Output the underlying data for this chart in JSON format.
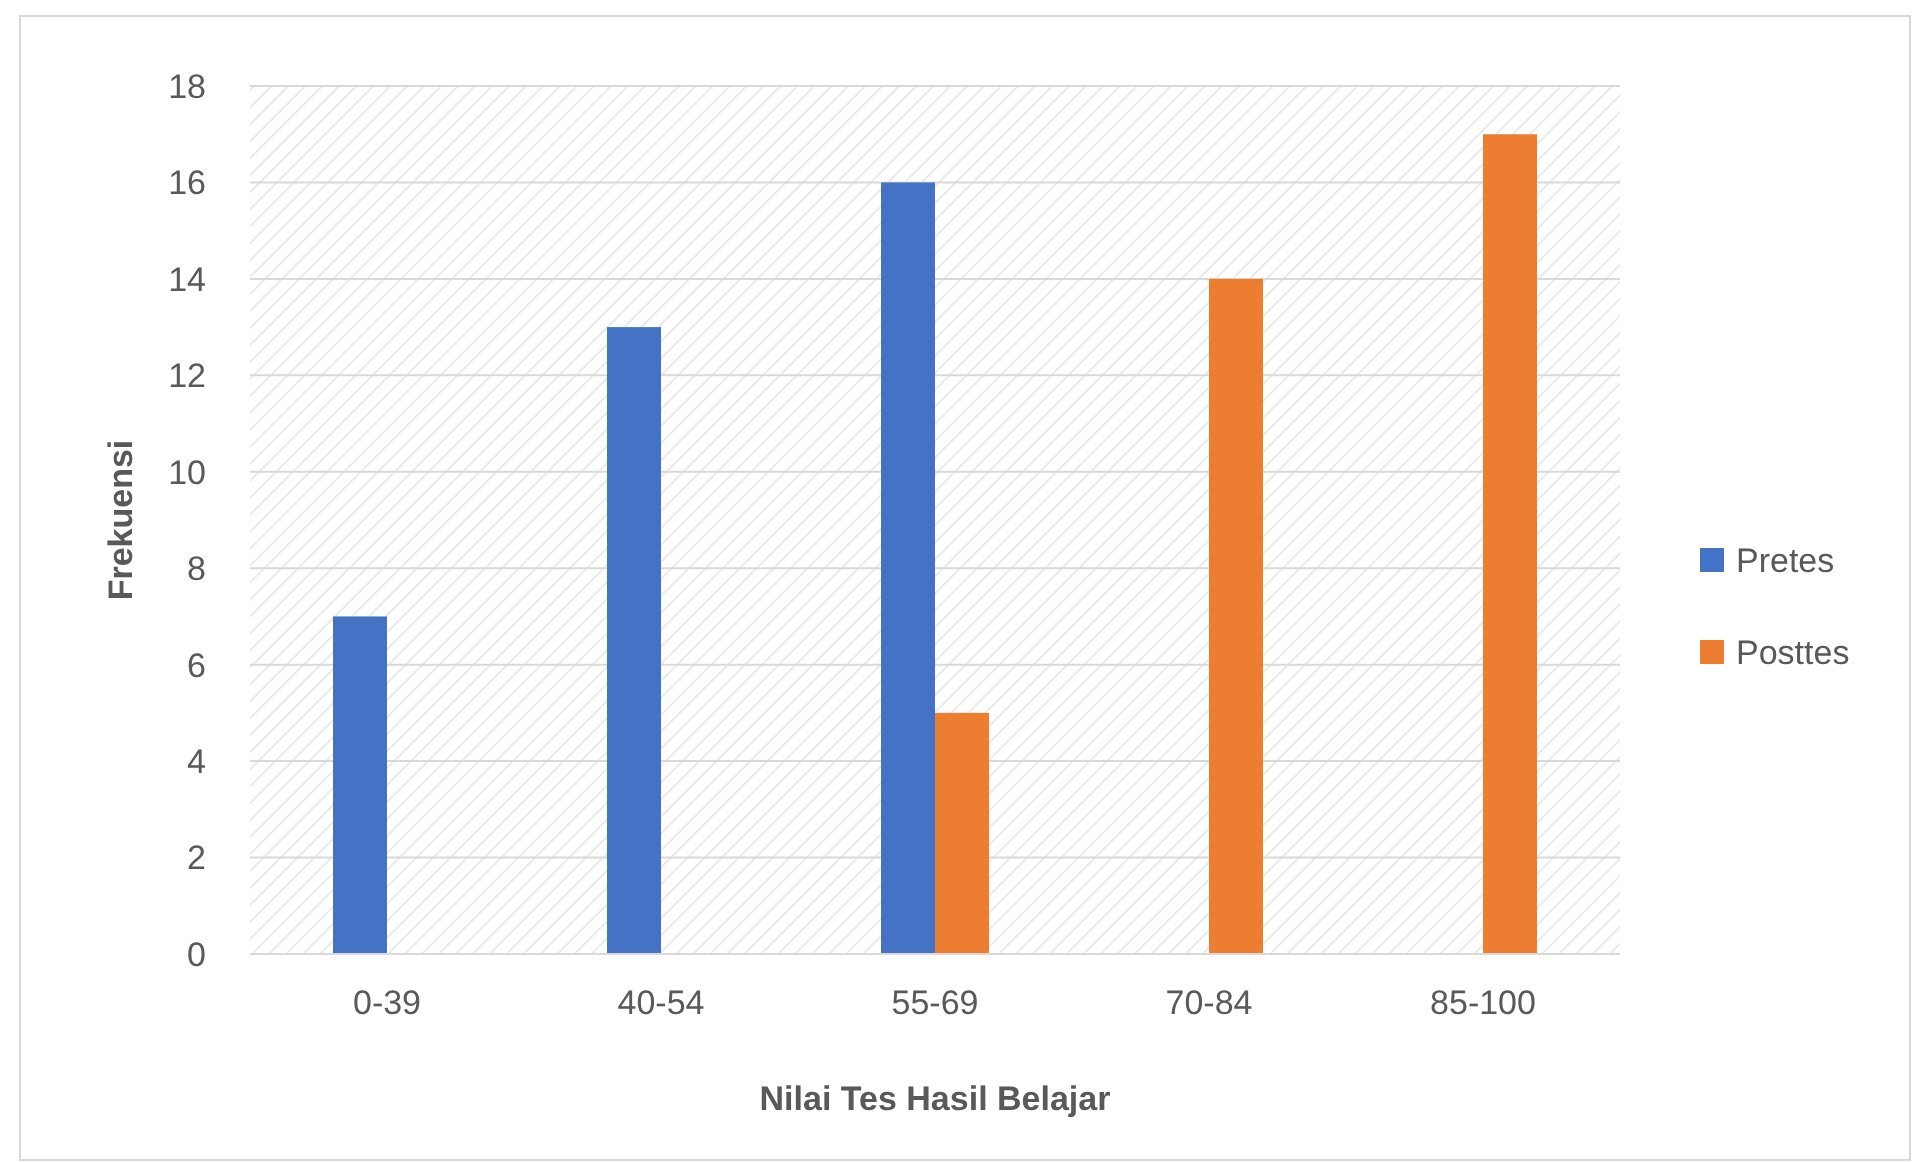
{
  "chart_data": {
    "type": "bar",
    "xlabel": "Nilai Tes Hasil Belajar",
    "ylabel": "Frekuensi",
    "categories": [
      "0-39",
      "40-54",
      "55-69",
      "70-84",
      "85-100"
    ],
    "series": [
      {
        "name": "Pretes",
        "color": "#4472c4",
        "values": [
          7,
          13,
          16,
          null,
          null
        ]
      },
      {
        "name": "Posttes",
        "color": "#ed7d31",
        "values": [
          null,
          null,
          5,
          14,
          17
        ]
      }
    ],
    "ylim": [
      0,
      18
    ],
    "yticks": [
      0,
      2,
      4,
      6,
      8,
      10,
      12,
      14,
      16,
      18
    ],
    "grid": "y",
    "legend": "right"
  }
}
